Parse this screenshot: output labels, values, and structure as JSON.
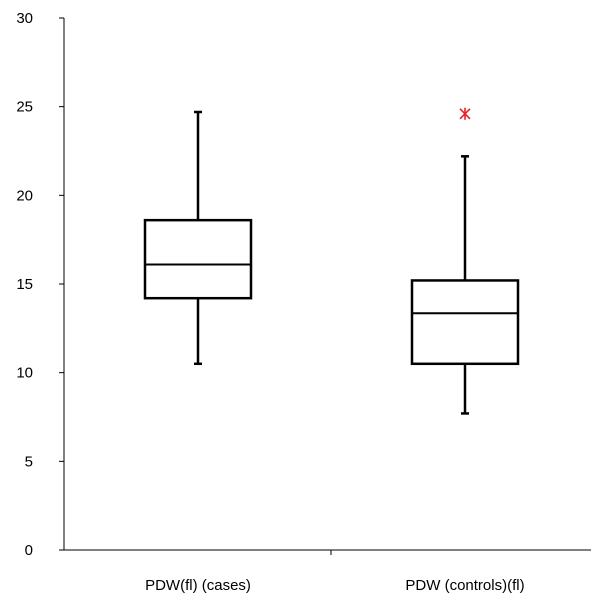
{
  "chart_data": {
    "type": "box",
    "title": "",
    "xlabel": "",
    "ylabel": "",
    "ylim": [
      0,
      30
    ],
    "yticks": [
      0,
      5,
      10,
      15,
      20,
      25,
      30
    ],
    "grid": false,
    "categories": [
      "PDW(fl) (cases)",
      "PDW (controls)(fl)"
    ],
    "boxes": [
      {
        "category": "PDW(fl) (cases)",
        "whisker_low": 10.5,
        "q1": 14.2,
        "median": 16.1,
        "q3": 18.6,
        "whisker_high": 24.7,
        "outliers": []
      },
      {
        "category": "PDW (controls)(fl)",
        "whisker_low": 7.7,
        "q1": 10.5,
        "median": 13.35,
        "q3": 15.2,
        "whisker_high": 22.2,
        "outliers": [
          24.6
        ]
      }
    ],
    "colors": {
      "box": "#000000",
      "outlier": "#e8202a"
    }
  }
}
